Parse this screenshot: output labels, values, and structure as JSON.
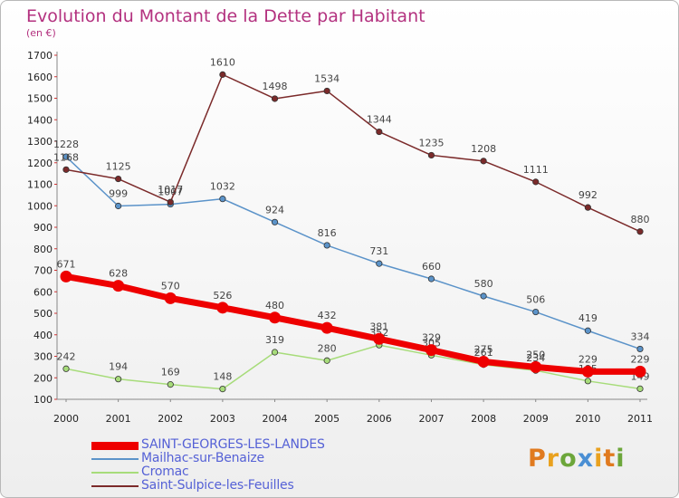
{
  "header": {
    "title": "Evolution du Montant de la Dette par Habitant",
    "subtitle": "(en €)"
  },
  "logo": {
    "text": "Proxiti",
    "colors": [
      "#e07a1f",
      "#e9a11e",
      "#6ca63a",
      "#4a8fd4",
      "#e9a11e",
      "#e07a1f",
      "#6ca63a"
    ]
  },
  "colors": {
    "title": "#b3317f",
    "legend_text": "#5561d6",
    "axis": "#888888",
    "grid": "#cccccc"
  },
  "chart_data": {
    "type": "line",
    "title": "Evolution du Montant de la Dette par Habitant",
    "subtitle": "(en €)",
    "x": [
      "2000",
      "2001",
      "2002",
      "2003",
      "2004",
      "2005",
      "2006",
      "2007",
      "2008",
      "2009",
      "2010",
      "2011"
    ],
    "ylim": [
      100,
      1700
    ],
    "yticks": [
      100,
      200,
      300,
      400,
      500,
      600,
      700,
      800,
      900,
      1000,
      1100,
      1200,
      1300,
      1400,
      1500,
      1600,
      1700
    ],
    "grid": false,
    "legend_position": "bottom-left",
    "series": [
      {
        "name": "SAINT-GEORGES-LES-LANDES",
        "color": "#ee0000",
        "bold": true,
        "values": [
          671,
          628,
          570,
          526,
          480,
          432,
          381,
          329,
          275,
          250,
          229,
          229
        ]
      },
      {
        "name": "Mailhac-sur-Benaize",
        "color": "#5b93c9",
        "values": [
          1228,
          999,
          1007,
          1032,
          924,
          816,
          731,
          660,
          580,
          506,
          419,
          334
        ]
      },
      {
        "name": "Cromac",
        "color": "#a7dc7a",
        "values": [
          242,
          194,
          169,
          148,
          319,
          280,
          352,
          305,
          261,
          234,
          185,
          149
        ]
      },
      {
        "name": "Saint-Sulpice-les-Feuilles",
        "color": "#7b2a2a",
        "values": [
          1168,
          1125,
          1017,
          1610,
          1498,
          1534,
          1344,
          1235,
          1208,
          1111,
          992,
          880
        ]
      }
    ]
  }
}
